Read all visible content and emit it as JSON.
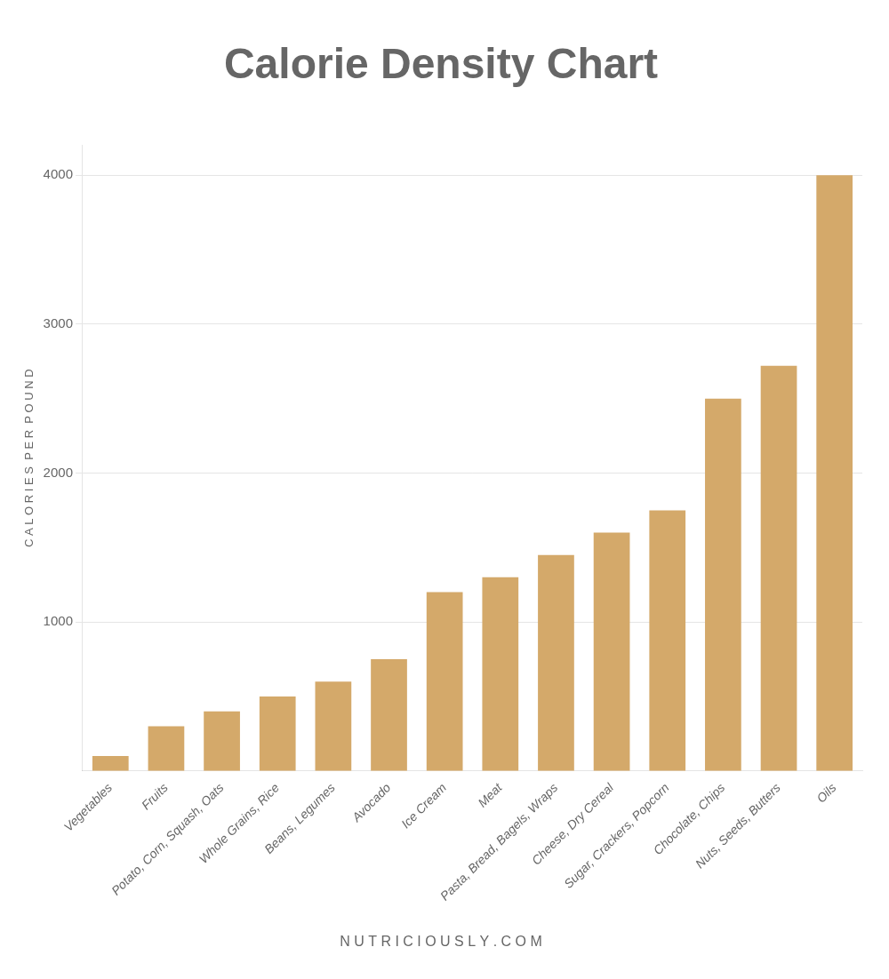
{
  "chart_data": {
    "type": "bar",
    "title": "Calorie Density Chart",
    "ylabel": "C A L O R I E S  P E R  P O U N D",
    "annotations": [
      "N U T R I C I O U S L Y . C O M"
    ],
    "categories": [
      "Vegetables",
      "Fruits",
      "Potato, Corn, Squash, Oats",
      "Whole Grains, Rice",
      "Beans, Legumes",
      "Avocado",
      "Ice Cream",
      "Meat",
      "Pasta, Bread, Bagels, Wraps",
      "Cheese, Dry Cereal",
      "Sugar, Crackers, Popcorn",
      "Chocolate, Chips",
      "Nuts, Seeds, Butters",
      "Oils"
    ],
    "values": [
      100,
      300,
      400,
      500,
      600,
      750,
      1200,
      1300,
      1450,
      1600,
      1750,
      2500,
      2720,
      4000
    ],
    "color": "#D4A96A",
    "ylim": [
      0,
      4200
    ],
    "yticks": [
      1000,
      2000,
      3000,
      4000
    ],
    "grid": true
  }
}
